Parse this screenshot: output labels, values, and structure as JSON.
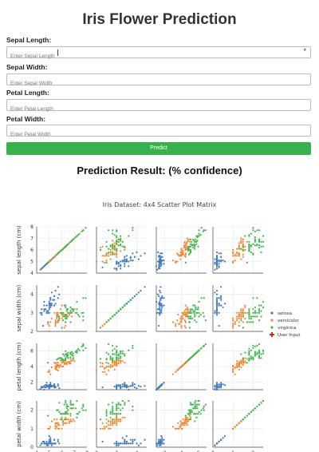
{
  "page": {
    "title": "Iris Flower Prediction",
    "result_heading": "Prediction Result: (% confidence)"
  },
  "form": {
    "fields": [
      {
        "label": "Sepal Length:",
        "placeholder": "Enter Sepal Length",
        "value": ""
      },
      {
        "label": "Sepal Width:",
        "placeholder": "Enter Sepal Width",
        "value": ""
      },
      {
        "label": "Petal Length:",
        "placeholder": "Enter Petal Length",
        "value": ""
      },
      {
        "label": "Petal Width:",
        "placeholder": "Enter Petal Width",
        "value": ""
      }
    ],
    "required_marker": "*",
    "button_label": "Predict",
    "button_color": "#35b34a"
  },
  "chart_data": {
    "type": "scatter",
    "title": "Iris Dataset: 4x4 Scatter Plot Matrix",
    "variables": [
      "sepal length (cm)",
      "sepal width (cm)",
      "petal length (cm)",
      "petal width (cm)"
    ],
    "ranges": [
      [
        4,
        8
      ],
      [
        2,
        4.5
      ],
      [
        1,
        7
      ],
      [
        0,
        2.5
      ]
    ],
    "ticks": [
      [
        4,
        5,
        6,
        7,
        8
      ],
      [
        2,
        3,
        4
      ],
      [
        2,
        4,
        6
      ],
      [
        0,
        1,
        2
      ]
    ],
    "y_ticks": [
      [
        4,
        5,
        6,
        7,
        8
      ],
      [
        2,
        3,
        4
      ],
      [
        2,
        4,
        6
      ],
      [
        0,
        1,
        2
      ]
    ],
    "legend": {
      "placement": "right",
      "entries": [
        "setosa",
        "versicolor",
        "virginica",
        "User Input"
      ]
    },
    "colors": {
      "setosa": "#3a7bbf",
      "versicolor": "#f0872f",
      "virginica": "#3db84b",
      "user_input": "#d62728"
    },
    "series": [
      {
        "name": "setosa",
        "points": [
          [
            5.1,
            3.5,
            1.4,
            0.2
          ],
          [
            4.9,
            3.0,
            1.4,
            0.2
          ],
          [
            4.7,
            3.2,
            1.3,
            0.2
          ],
          [
            4.6,
            3.1,
            1.5,
            0.2
          ],
          [
            5.0,
            3.6,
            1.4,
            0.2
          ],
          [
            5.4,
            3.9,
            1.7,
            0.4
          ],
          [
            4.6,
            3.4,
            1.4,
            0.3
          ],
          [
            5.0,
            3.4,
            1.5,
            0.2
          ],
          [
            4.4,
            2.9,
            1.4,
            0.2
          ],
          [
            4.9,
            3.1,
            1.5,
            0.1
          ],
          [
            5.4,
            3.7,
            1.5,
            0.2
          ],
          [
            4.8,
            3.4,
            1.6,
            0.2
          ],
          [
            4.8,
            3.0,
            1.4,
            0.1
          ],
          [
            4.3,
            3.0,
            1.1,
            0.1
          ],
          [
            5.8,
            4.0,
            1.2,
            0.2
          ],
          [
            5.7,
            4.4,
            1.5,
            0.4
          ],
          [
            5.4,
            3.9,
            1.3,
            0.4
          ],
          [
            5.1,
            3.5,
            1.4,
            0.3
          ],
          [
            5.7,
            3.8,
            1.7,
            0.3
          ],
          [
            5.1,
            3.8,
            1.5,
            0.3
          ],
          [
            5.4,
            3.4,
            1.7,
            0.2
          ],
          [
            5.1,
            3.7,
            1.5,
            0.4
          ],
          [
            4.6,
            3.6,
            1.0,
            0.2
          ],
          [
            5.1,
            3.3,
            1.7,
            0.5
          ],
          [
            4.8,
            3.4,
            1.9,
            0.2
          ],
          [
            5.0,
            3.0,
            1.6,
            0.2
          ],
          [
            5.0,
            3.4,
            1.6,
            0.4
          ],
          [
            5.2,
            3.5,
            1.5,
            0.2
          ],
          [
            5.2,
            3.4,
            1.4,
            0.2
          ],
          [
            4.7,
            3.2,
            1.6,
            0.2
          ],
          [
            4.8,
            3.1,
            1.6,
            0.2
          ],
          [
            5.4,
            3.4,
            1.5,
            0.4
          ],
          [
            5.2,
            4.1,
            1.5,
            0.1
          ],
          [
            5.5,
            4.2,
            1.4,
            0.2
          ],
          [
            4.9,
            3.1,
            1.5,
            0.2
          ],
          [
            5.0,
            3.2,
            1.2,
            0.2
          ],
          [
            5.5,
            3.5,
            1.3,
            0.2
          ],
          [
            4.4,
            3.0,
            1.3,
            0.2
          ],
          [
            5.1,
            3.4,
            1.5,
            0.2
          ],
          [
            5.0,
            3.5,
            1.3,
            0.3
          ],
          [
            4.5,
            2.3,
            1.3,
            0.3
          ],
          [
            4.4,
            3.2,
            1.3,
            0.2
          ],
          [
            5.0,
            3.5,
            1.6,
            0.6
          ],
          [
            5.1,
            3.8,
            1.9,
            0.4
          ],
          [
            4.8,
            3.0,
            1.4,
            0.3
          ],
          [
            5.1,
            3.8,
            1.6,
            0.2
          ],
          [
            4.6,
            3.2,
            1.4,
            0.2
          ],
          [
            5.3,
            3.7,
            1.5,
            0.2
          ],
          [
            5.0,
            3.3,
            1.4,
            0.2
          ]
        ]
      },
      {
        "name": "versicolor",
        "points": [
          [
            7.0,
            3.2,
            4.7,
            1.4
          ],
          [
            6.4,
            3.2,
            4.5,
            1.5
          ],
          [
            6.9,
            3.1,
            4.9,
            1.5
          ],
          [
            5.5,
            2.3,
            4.0,
            1.3
          ],
          [
            6.5,
            2.8,
            4.6,
            1.5
          ],
          [
            5.7,
            2.8,
            4.5,
            1.3
          ],
          [
            6.3,
            3.3,
            4.7,
            1.6
          ],
          [
            4.9,
            2.4,
            3.3,
            1.0
          ],
          [
            6.6,
            2.9,
            4.6,
            1.3
          ],
          [
            5.2,
            2.7,
            3.9,
            1.4
          ],
          [
            5.0,
            2.0,
            3.5,
            1.0
          ],
          [
            5.9,
            3.0,
            4.2,
            1.5
          ],
          [
            6.0,
            2.2,
            4.0,
            1.0
          ],
          [
            6.1,
            2.9,
            4.7,
            1.4
          ],
          [
            5.6,
            2.9,
            3.6,
            1.3
          ],
          [
            6.7,
            3.1,
            4.4,
            1.4
          ],
          [
            5.6,
            3.0,
            4.5,
            1.5
          ],
          [
            5.8,
            2.7,
            4.1,
            1.0
          ],
          [
            6.2,
            2.2,
            4.5,
            1.5
          ],
          [
            5.6,
            2.5,
            3.9,
            1.1
          ],
          [
            5.9,
            3.2,
            4.8,
            1.8
          ],
          [
            6.1,
            2.8,
            4.0,
            1.3
          ],
          [
            6.3,
            2.5,
            4.9,
            1.5
          ],
          [
            6.1,
            2.8,
            4.7,
            1.2
          ],
          [
            6.4,
            2.9,
            4.3,
            1.3
          ],
          [
            6.6,
            3.0,
            4.4,
            1.4
          ],
          [
            6.8,
            2.8,
            4.8,
            1.4
          ],
          [
            6.7,
            3.0,
            5.0,
            1.7
          ],
          [
            6.0,
            2.9,
            4.5,
            1.5
          ],
          [
            5.7,
            2.6,
            3.5,
            1.0
          ],
          [
            5.5,
            2.4,
            3.8,
            1.1
          ],
          [
            5.5,
            2.4,
            3.7,
            1.0
          ],
          [
            5.8,
            2.7,
            3.9,
            1.2
          ],
          [
            6.0,
            2.7,
            5.1,
            1.6
          ],
          [
            5.4,
            3.0,
            4.5,
            1.5
          ],
          [
            6.0,
            3.4,
            4.5,
            1.6
          ],
          [
            6.7,
            3.1,
            4.7,
            1.5
          ],
          [
            6.3,
            2.3,
            4.4,
            1.3
          ],
          [
            5.6,
            3.0,
            4.1,
            1.3
          ],
          [
            5.5,
            2.5,
            4.0,
            1.3
          ],
          [
            5.5,
            2.6,
            4.4,
            1.2
          ],
          [
            6.1,
            3.0,
            4.6,
            1.4
          ],
          [
            5.8,
            2.6,
            4.0,
            1.2
          ],
          [
            5.0,
            2.3,
            3.3,
            1.0
          ],
          [
            5.6,
            2.7,
            4.2,
            1.3
          ],
          [
            5.7,
            3.0,
            4.2,
            1.2
          ],
          [
            5.7,
            2.9,
            4.2,
            1.3
          ],
          [
            6.2,
            2.9,
            4.3,
            1.3
          ],
          [
            5.1,
            2.5,
            3.0,
            1.1
          ],
          [
            5.7,
            2.8,
            4.1,
            1.3
          ]
        ]
      },
      {
        "name": "virginica",
        "points": [
          [
            6.3,
            3.3,
            6.0,
            2.5
          ],
          [
            5.8,
            2.7,
            5.1,
            1.9
          ],
          [
            7.1,
            3.0,
            5.9,
            2.1
          ],
          [
            6.3,
            2.9,
            5.6,
            1.8
          ],
          [
            6.5,
            3.0,
            5.8,
            2.2
          ],
          [
            7.6,
            3.0,
            6.6,
            2.1
          ],
          [
            4.9,
            2.5,
            4.5,
            1.7
          ],
          [
            7.3,
            2.9,
            6.3,
            1.8
          ],
          [
            6.7,
            2.5,
            5.8,
            1.8
          ],
          [
            7.2,
            3.6,
            6.1,
            2.5
          ],
          [
            6.5,
            3.2,
            5.1,
            2.0
          ],
          [
            6.4,
            2.7,
            5.3,
            1.9
          ],
          [
            6.8,
            3.0,
            5.5,
            2.1
          ],
          [
            5.7,
            2.5,
            5.0,
            2.0
          ],
          [
            5.8,
            2.8,
            5.1,
            2.4
          ],
          [
            6.4,
            3.2,
            5.3,
            2.3
          ],
          [
            6.5,
            3.0,
            5.5,
            1.8
          ],
          [
            7.7,
            3.8,
            6.7,
            2.2
          ],
          [
            7.7,
            2.6,
            6.9,
            2.3
          ],
          [
            6.0,
            2.2,
            5.0,
            1.5
          ],
          [
            6.9,
            3.2,
            5.7,
            2.3
          ],
          [
            5.6,
            2.8,
            4.9,
            2.0
          ],
          [
            7.7,
            2.8,
            6.7,
            2.0
          ],
          [
            6.3,
            2.7,
            4.9,
            1.8
          ],
          [
            6.7,
            3.3,
            5.7,
            2.1
          ],
          [
            7.2,
            3.2,
            6.0,
            1.8
          ],
          [
            6.2,
            2.8,
            4.8,
            1.8
          ],
          [
            6.1,
            3.0,
            4.9,
            1.8
          ],
          [
            6.4,
            2.8,
            5.6,
            2.1
          ],
          [
            7.2,
            3.0,
            5.8,
            1.6
          ],
          [
            7.4,
            2.8,
            6.1,
            1.9
          ],
          [
            7.9,
            3.8,
            6.4,
            2.0
          ],
          [
            6.4,
            2.8,
            5.6,
            2.2
          ],
          [
            6.3,
            2.8,
            5.1,
            1.5
          ],
          [
            6.1,
            2.6,
            5.6,
            1.4
          ],
          [
            7.7,
            3.0,
            6.1,
            2.3
          ],
          [
            6.3,
            3.4,
            5.6,
            2.4
          ],
          [
            6.4,
            3.1,
            5.5,
            1.8
          ],
          [
            6.0,
            3.0,
            4.8,
            1.8
          ],
          [
            6.9,
            3.1,
            5.4,
            2.1
          ],
          [
            6.7,
            3.1,
            5.6,
            2.4
          ],
          [
            6.9,
            3.1,
            5.1,
            2.3
          ],
          [
            6.8,
            3.2,
            5.9,
            2.3
          ],
          [
            6.7,
            3.3,
            5.7,
            2.5
          ],
          [
            6.7,
            3.0,
            5.2,
            2.3
          ],
          [
            6.3,
            2.5,
            5.0,
            1.9
          ],
          [
            6.5,
            3.0,
            5.2,
            2.0
          ],
          [
            6.2,
            3.4,
            5.4,
            2.3
          ],
          [
            5.9,
            3.0,
            5.1,
            1.8
          ]
        ]
      }
    ]
  }
}
